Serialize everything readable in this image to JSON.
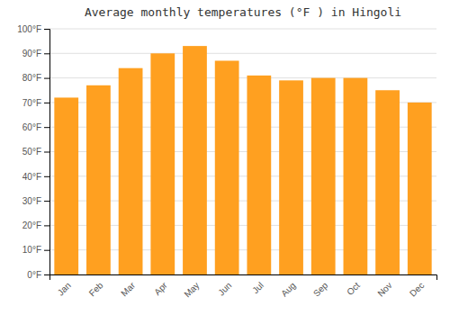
{
  "chart_data": {
    "type": "bar",
    "title": "Average monthly temperatures (°F ) in Hingoli",
    "categories": [
      "Jan",
      "Feb",
      "Mar",
      "Apr",
      "May",
      "Jun",
      "Jul",
      "Aug",
      "Sep",
      "Oct",
      "Nov",
      "Dec"
    ],
    "values": [
      72,
      77,
      84,
      90,
      93,
      87,
      81,
      79,
      80,
      80,
      75,
      70
    ],
    "color": "#FFA020",
    "ylim": [
      0,
      100
    ],
    "yticks": [
      {
        "value": 0,
        "label": "0°F"
      },
      {
        "value": 10,
        "label": "10°F"
      },
      {
        "value": 20,
        "label": "20°F"
      },
      {
        "value": 30,
        "label": "30°F"
      },
      {
        "value": 40,
        "label": "40°F"
      },
      {
        "value": 50,
        "label": "50°F"
      },
      {
        "value": 60,
        "label": "60°F"
      },
      {
        "value": 70,
        "label": "70°F"
      },
      {
        "value": 80,
        "label": "80°F"
      },
      {
        "value": 90,
        "label": "90°F"
      },
      {
        "value": 100,
        "label": "100°F"
      }
    ],
    "grid": true
  }
}
